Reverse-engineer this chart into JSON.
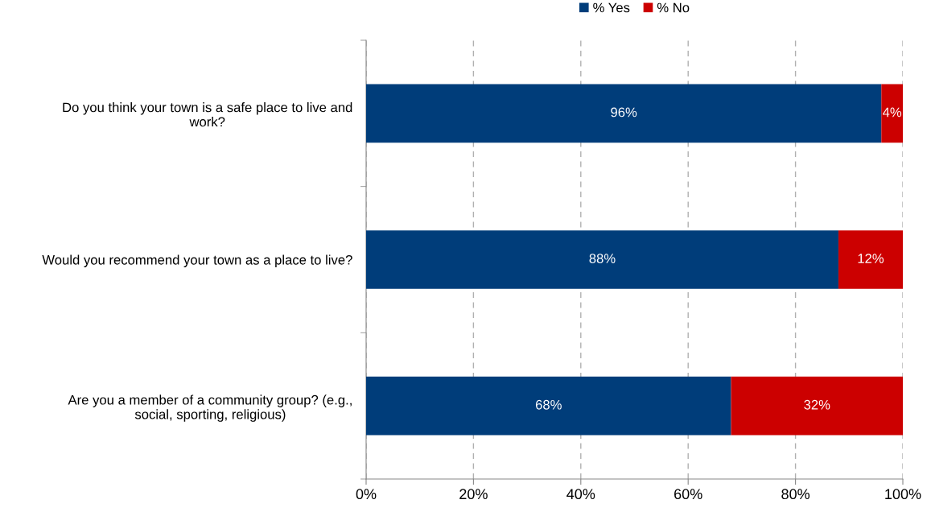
{
  "chart_data": {
    "type": "bar",
    "orientation": "horizontal",
    "stacked": true,
    "categories": [
      "Do you think your town is a safe place to live and work?",
      "Would you recommend your town as a place to live?",
      "Are you a member of a community group? (e.g., social, sporting, religious)"
    ],
    "series": [
      {
        "name": "% Yes",
        "color": "#003d7a",
        "values": [
          96,
          88,
          68
        ],
        "value_labels": [
          "96%",
          "88%",
          "68%"
        ]
      },
      {
        "name": "% No",
        "color": "#cc0000",
        "values": [
          4,
          12,
          32
        ],
        "value_labels": [
          "4%",
          "12%",
          "32%"
        ]
      }
    ],
    "xlim": [
      0,
      100
    ],
    "xticks": [
      {
        "value": 0,
        "label": "0%"
      },
      {
        "value": 20,
        "label": "20%"
      },
      {
        "value": 40,
        "label": "40%"
      },
      {
        "value": 60,
        "label": "60%"
      },
      {
        "value": 80,
        "label": "80%"
      },
      {
        "value": 100,
        "label": "100%"
      }
    ],
    "grid": "x",
    "legend": "top"
  }
}
